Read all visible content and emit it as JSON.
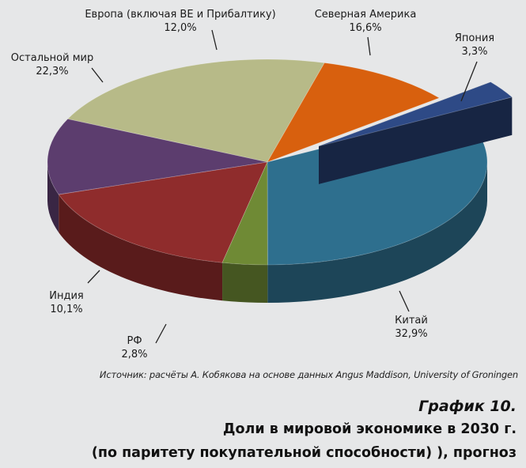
{
  "chart_data": {
    "type": "pie",
    "slices": [
      {
        "label": "Китай",
        "value": 32.9,
        "value_text": "32,9%",
        "color": "#2e6f8e",
        "exploded": false
      },
      {
        "label": "Япония",
        "value": 3.3,
        "value_text": "3,3%",
        "color": "#6f8a35",
        "exploded": false
      },
      {
        "label": "Северная Америка",
        "value": 16.6,
        "value_text": "16,6%",
        "color": "#8f2c2c",
        "exploded": false
      },
      {
        "label": "Европа (включая ВЕ и Прибалтику)",
        "value": 12.0,
        "value_text": "12,0%",
        "color": "#5c3d6e",
        "exploded": false
      },
      {
        "label": "Остальной мир",
        "value": 22.3,
        "value_text": "22,3%",
        "color": "#b7ba88",
        "exploded": false
      },
      {
        "label": "Индия",
        "value": 10.1,
        "value_text": "10,1%",
        "color": "#d8600e",
        "exploded": false
      },
      {
        "label": "РФ",
        "value": 2.8,
        "value_text": "2,8%",
        "color": "#2e4a86",
        "exploded": true
      }
    ],
    "style": "3d",
    "legend": "none"
  },
  "source": "Источник: расчёты А. Кобякова на основе данных Angus Maddison, University of Groningen",
  "caption": {
    "number": "График 10.",
    "title": "Доли в мировой экономике в 2030 г.",
    "subtitle": "(по паритету покупательной способности) ), прогноз"
  }
}
